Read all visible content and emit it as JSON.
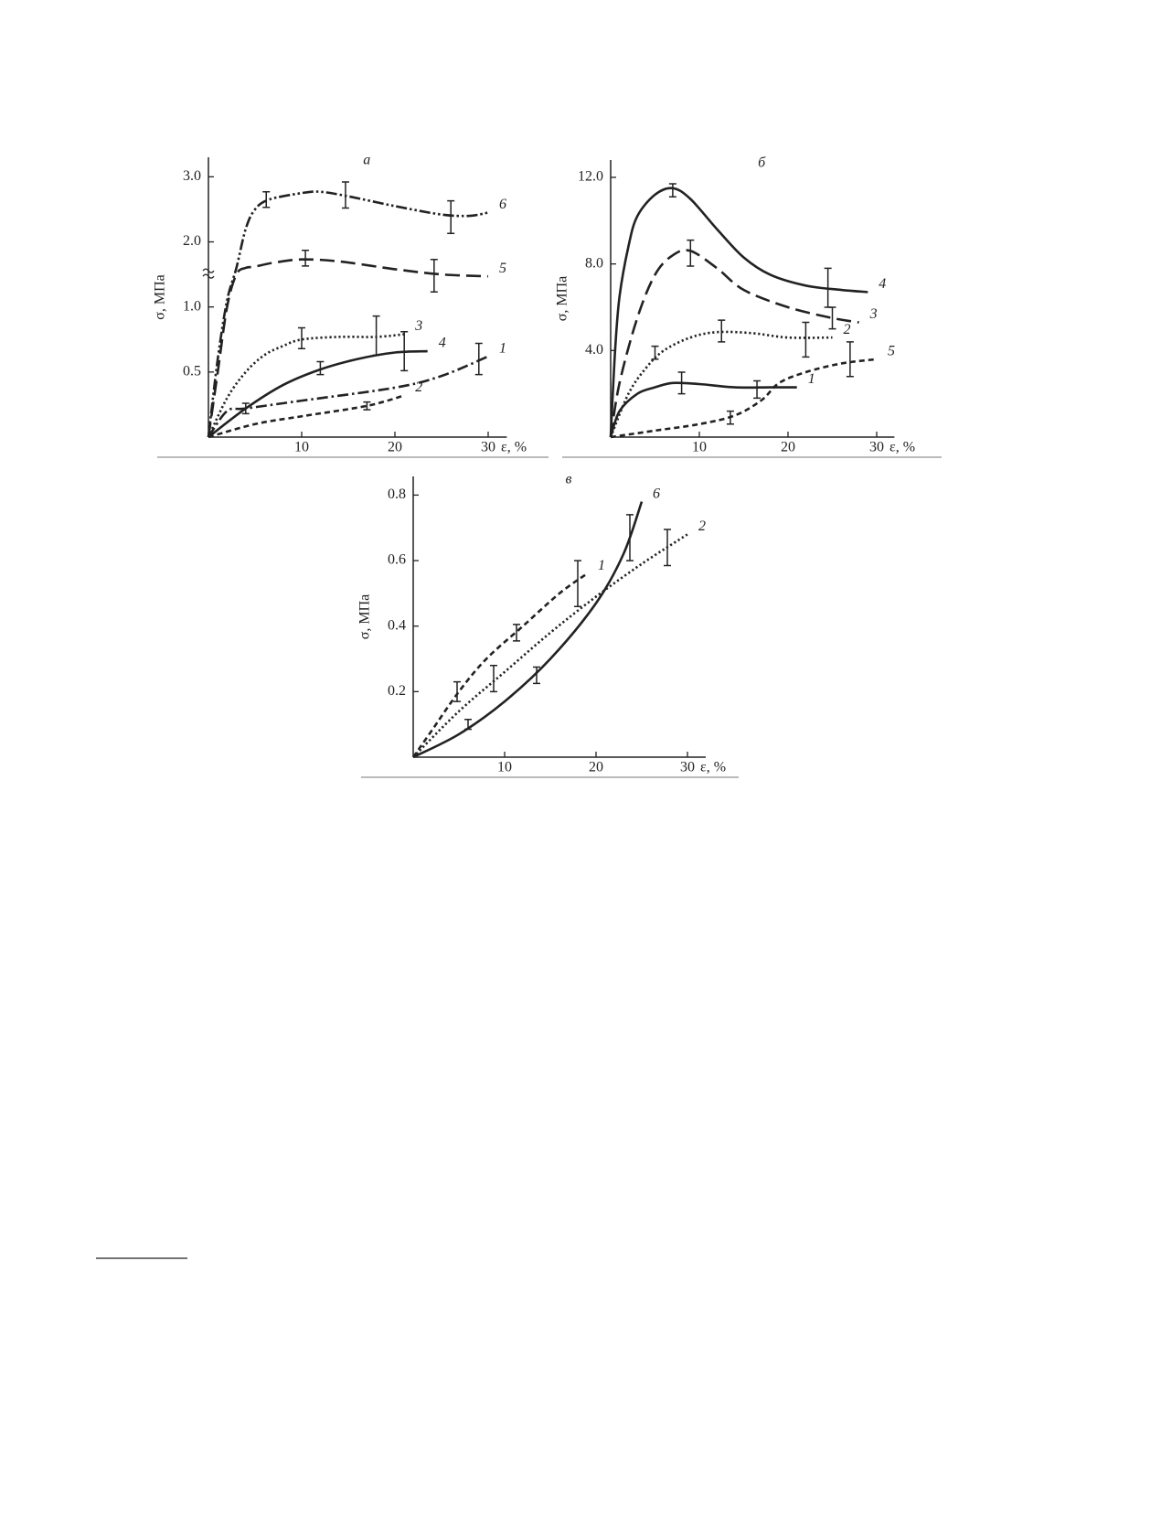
{
  "chart_data": [
    {
      "type": "line",
      "title": "а",
      "ylabel": "σ, МПа",
      "xlabel": "ε, %",
      "y_scale": "broken",
      "xlim": [
        0,
        32
      ],
      "ylim": [
        0,
        3.3
      ],
      "xticks": [
        10,
        20,
        30
      ],
      "yticks": [
        0.5,
        {
          "value": 1,
          "label": "1.0"
        },
        {
          "value": 2,
          "label": "2.0"
        },
        {
          "value": 3,
          "label": "3.0"
        }
      ],
      "series": [
        {
          "name": "6",
          "color": "#222",
          "style": "dashdotdot",
          "x": [
            0,
            1,
            2,
            3,
            4,
            5,
            6.5,
            10,
            12,
            15,
            20,
            25,
            28,
            30
          ],
          "values": [
            0,
            0.6,
            1.1,
            1.6,
            2.2,
            2.5,
            2.65,
            2.75,
            2.77,
            2.7,
            2.55,
            2.42,
            2.4,
            2.45
          ],
          "error_bars": [
            {
              "x": 6.2,
              "y": 2.65,
              "err": 0.12
            },
            {
              "x": 14.7,
              "y": 2.72,
              "err": 0.2
            },
            {
              "x": 26,
              "y": 2.38,
              "err": 0.25
            }
          ]
        },
        {
          "name": "5",
          "color": "#222",
          "style": "dash",
          "x": [
            0,
            1,
            2,
            3,
            4,
            5,
            7,
            10,
            14,
            20,
            25,
            30
          ],
          "values": [
            0,
            0.5,
            1.0,
            1.5,
            1.6,
            1.62,
            1.68,
            1.73,
            1.7,
            1.58,
            1.5,
            1.47
          ],
          "error_bars": [
            {
              "x": 10.4,
              "y": 1.75,
              "err": 0.12
            },
            {
              "x": 24.2,
              "y": 1.48,
              "err": 0.25
            }
          ]
        },
        {
          "name": "3",
          "color": "#222",
          "style": "dotted",
          "x": [
            0,
            2,
            4,
            6,
            8,
            10,
            14,
            18,
            21
          ],
          "values": [
            0,
            0.3,
            0.5,
            0.63,
            0.7,
            0.75,
            0.77,
            0.77,
            0.79
          ],
          "error_bars": [
            {
              "x": 10,
              "y": 0.76,
              "err": 0.08
            },
            {
              "x": 18,
              "y": 0.78,
              "err": 0.15
            }
          ]
        },
        {
          "name": "4",
          "color": "#222",
          "style": "solid",
          "x": [
            0,
            4,
            8,
            12,
            16,
            20,
            23.5
          ],
          "values": [
            0,
            0.22,
            0.4,
            0.52,
            0.6,
            0.65,
            0.66
          ],
          "error_bars": [
            {
              "x": 12,
              "y": 0.53,
              "err": 0.05
            },
            {
              "x": 21,
              "y": 0.66,
              "err": 0.15
            }
          ]
        },
        {
          "name": "1",
          "color": "#222",
          "style": "dashdot",
          "x": [
            0,
            2,
            4,
            10,
            20,
            25,
            30
          ],
          "values": [
            0,
            0.2,
            0.22,
            0.28,
            0.38,
            0.47,
            0.62
          ],
          "error_bars": [
            {
              "x": 4,
              "y": 0.22,
              "err": 0.04
            },
            {
              "x": 29,
              "y": 0.6,
              "err": 0.12
            }
          ]
        },
        {
          "name": "2",
          "color": "#222",
          "style": "shortdash",
          "x": [
            0,
            5,
            10,
            17,
            21
          ],
          "values": [
            0,
            0.1,
            0.16,
            0.24,
            0.32
          ],
          "error_bars": [
            {
              "x": 17,
              "y": 0.24,
              "err": 0.03
            }
          ]
        }
      ]
    },
    {
      "type": "line",
      "title": "б",
      "ylabel": "σ, МПа",
      "xlabel": "ε, %",
      "y_scale": "linear",
      "xlim": [
        0,
        32
      ],
      "ylim": [
        0,
        12.8
      ],
      "xticks": [
        10,
        20,
        30
      ],
      "yticks": [
        {
          "value": 4,
          "label": "4.0"
        },
        {
          "value": 8,
          "label": "8.0"
        },
        {
          "value": 12,
          "label": "12.0"
        }
      ],
      "series": [
        {
          "name": "4",
          "color": "#222",
          "style": "solid",
          "x": [
            0,
            0.5,
            1,
            2,
            3,
            5,
            7,
            9,
            12,
            15,
            18,
            22,
            26,
            29
          ],
          "values": [
            0,
            4,
            6.5,
            8.8,
            10.2,
            11.2,
            11.5,
            11.0,
            9.6,
            8.3,
            7.5,
            7.0,
            6.8,
            6.7
          ],
          "error_bars": [
            {
              "x": 7,
              "y": 11.4,
              "err": 0.3
            },
            {
              "x": 24.5,
              "y": 6.9,
              "err": 0.9
            }
          ]
        },
        {
          "name": "3",
          "color": "#222",
          "style": "dash",
          "x": [
            0,
            1,
            3,
            5,
            7,
            9,
            12,
            15,
            20,
            25,
            28
          ],
          "values": [
            0,
            2.5,
            5.5,
            7.5,
            8.4,
            8.6,
            7.8,
            6.8,
            6.0,
            5.5,
            5.3
          ],
          "error_bars": [
            {
              "x": 9,
              "y": 8.5,
              "err": 0.6
            },
            {
              "x": 25,
              "y": 5.5,
              "err": 0.5
            }
          ]
        },
        {
          "name": "2",
          "color": "#222",
          "style": "dotted",
          "x": [
            0,
            2,
            4,
            6,
            9,
            12,
            16,
            20,
            25
          ],
          "values": [
            0,
            2,
            3.2,
            4.0,
            4.6,
            4.85,
            4.8,
            4.6,
            4.6
          ],
          "error_bars": [
            {
              "x": 5,
              "y": 3.9,
              "err": 0.3
            },
            {
              "x": 12.5,
              "y": 4.9,
              "err": 0.5
            },
            {
              "x": 22,
              "y": 4.5,
              "err": 0.8
            }
          ]
        },
        {
          "name": "1",
          "color": "#222",
          "style": "solid",
          "x": [
            0,
            1,
            3,
            5,
            7,
            10,
            14,
            18,
            21
          ],
          "values": [
            0,
            1.2,
            2.0,
            2.3,
            2.5,
            2.45,
            2.3,
            2.3,
            2.3
          ],
          "error_bars": [
            {
              "x": 8,
              "y": 2.5,
              "err": 0.5
            },
            {
              "x": 16.5,
              "y": 2.2,
              "err": 0.4
            }
          ]
        },
        {
          "name": "5",
          "color": "#222",
          "style": "shortdash",
          "x": [
            0,
            5,
            10,
            14,
            17,
            19,
            22,
            26,
            30
          ],
          "values": [
            0,
            0.3,
            0.6,
            1.0,
            1.7,
            2.5,
            3.0,
            3.4,
            3.6
          ],
          "error_bars": [
            {
              "x": 13.5,
              "y": 0.9,
              "err": 0.3
            },
            {
              "x": 27,
              "y": 3.6,
              "err": 0.8
            }
          ]
        }
      ]
    },
    {
      "type": "line",
      "title": "в",
      "ylabel": "σ, МПа",
      "xlabel": "ε, %",
      "y_scale": "linear",
      "xlim": [
        0,
        32
      ],
      "ylim": [
        0,
        0.857
      ],
      "xticks": [
        10,
        20,
        30
      ],
      "yticks": [
        0.2,
        0.4,
        0.6,
        0.8
      ],
      "series": [
        {
          "name": "6",
          "color": "#222",
          "style": "solid",
          "x": [
            0,
            5,
            10,
            15,
            20,
            23,
            25
          ],
          "values": [
            0,
            0.07,
            0.17,
            0.3,
            0.47,
            0.62,
            0.78
          ],
          "error_bars": [
            {
              "x": 6,
              "y": 0.1,
              "err": 0.015
            },
            {
              "x": 13.5,
              "y": 0.25,
              "err": 0.025
            },
            {
              "x": 23.7,
              "y": 0.67,
              "err": 0.07
            }
          ]
        },
        {
          "name": "1",
          "color": "#222",
          "style": "shortdash",
          "x": [
            0,
            2,
            5,
            8,
            12,
            16,
            19
          ],
          "values": [
            0,
            0.08,
            0.2,
            0.3,
            0.4,
            0.5,
            0.56
          ],
          "error_bars": [
            {
              "x": 4.8,
              "y": 0.2,
              "err": 0.03
            },
            {
              "x": 11.3,
              "y": 0.38,
              "err": 0.025
            },
            {
              "x": 18,
              "y": 0.53,
              "err": 0.07
            }
          ]
        },
        {
          "name": "2",
          "color": "#222",
          "style": "dotted",
          "x": [
            0,
            5,
            10,
            15,
            20,
            25,
            30
          ],
          "values": [
            0,
            0.14,
            0.26,
            0.38,
            0.49,
            0.59,
            0.68
          ],
          "error_bars": [
            {
              "x": 8.8,
              "y": 0.24,
              "err": 0.04
            },
            {
              "x": 27.8,
              "y": 0.64,
              "err": 0.055
            }
          ]
        }
      ]
    }
  ]
}
